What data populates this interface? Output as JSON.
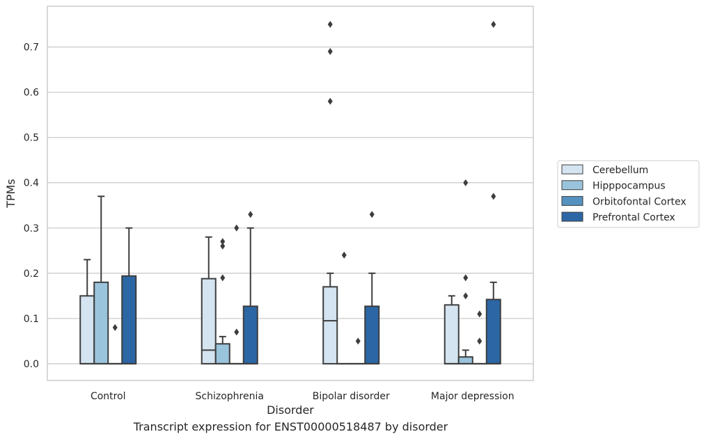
{
  "caption": "Transcript expression for ENST00000518487 by disorder",
  "chart_data": {
    "type": "box",
    "title": "",
    "xlabel": "Disorder",
    "ylabel": "TPMs",
    "ylim": [
      -0.037,
      0.79
    ],
    "yticks": [
      0.0,
      0.1,
      0.2,
      0.3,
      0.4,
      0.5,
      0.6,
      0.7
    ],
    "ytick_labels": [
      "0.0",
      "0.1",
      "0.2",
      "0.3",
      "0.4",
      "0.5",
      "0.6",
      "0.7"
    ],
    "grid": "horizontal",
    "legend_position": "right",
    "categories": [
      "Control",
      "Schizophrenia",
      "Bipolar disorder",
      "Major depression"
    ],
    "series": [
      {
        "name": "Cerebellum",
        "color": "#d4e4f1",
        "boxes": [
          {
            "q1": 0.0,
            "median": 0.0,
            "q3": 0.15,
            "whisker_low": 0.0,
            "whisker_high": 0.23,
            "outliers": []
          },
          {
            "q1": 0.0,
            "median": 0.03,
            "q3": 0.188,
            "whisker_low": 0.0,
            "whisker_high": 0.28,
            "outliers": []
          },
          {
            "q1": 0.0,
            "median": 0.095,
            "q3": 0.17,
            "whisker_low": 0.0,
            "whisker_high": 0.2,
            "outliers": [
              0.58,
              0.69,
              0.75
            ]
          },
          {
            "q1": 0.0,
            "median": 0.0,
            "q3": 0.13,
            "whisker_low": 0.0,
            "whisker_high": 0.15,
            "outliers": []
          }
        ]
      },
      {
        "name": "Hipppocampus",
        "color": "#9ac4dc",
        "boxes": [
          {
            "q1": 0.0,
            "median": 0.0,
            "q3": 0.18,
            "whisker_low": 0.0,
            "whisker_high": 0.37,
            "outliers": []
          },
          {
            "q1": 0.0,
            "median": 0.0,
            "q3": 0.044,
            "whisker_low": 0.0,
            "whisker_high": 0.06,
            "outliers": [
              0.19,
              0.26,
              0.27
            ]
          },
          {
            "q1": 0.0,
            "median": 0.0,
            "q3": 0.0,
            "whisker_low": 0.0,
            "whisker_high": 0.0,
            "outliers": [
              0.24
            ]
          },
          {
            "q1": 0.0,
            "median": 0.0,
            "q3": 0.015,
            "whisker_low": 0.0,
            "whisker_high": 0.03,
            "outliers": [
              0.15,
              0.19,
              0.4
            ]
          }
        ]
      },
      {
        "name": "Orbitofontal Cortex",
        "color": "#5592c0",
        "boxes": [
          {
            "q1": 0.0,
            "median": 0.0,
            "q3": 0.0,
            "whisker_low": 0.0,
            "whisker_high": 0.0,
            "outliers": [
              0.08
            ]
          },
          {
            "q1": 0.0,
            "median": 0.0,
            "q3": 0.0,
            "whisker_low": 0.0,
            "whisker_high": 0.0,
            "outliers": [
              0.07,
              0.3
            ]
          },
          {
            "q1": 0.0,
            "median": 0.0,
            "q3": 0.0,
            "whisker_low": 0.0,
            "whisker_high": 0.0,
            "outliers": [
              0.05
            ]
          },
          {
            "q1": 0.0,
            "median": 0.0,
            "q3": 0.0,
            "whisker_low": 0.0,
            "whisker_high": 0.0,
            "outliers": [
              0.05,
              0.11
            ]
          }
        ]
      },
      {
        "name": "Prefrontal Cortex",
        "color": "#2c66a5",
        "boxes": [
          {
            "q1": 0.0,
            "median": 0.0,
            "q3": 0.194,
            "whisker_low": 0.0,
            "whisker_high": 0.3,
            "outliers": []
          },
          {
            "q1": 0.0,
            "median": 0.0,
            "q3": 0.127,
            "whisker_low": 0.0,
            "whisker_high": 0.3,
            "outliers": [
              0.33
            ]
          },
          {
            "q1": 0.0,
            "median": 0.0,
            "q3": 0.127,
            "whisker_low": 0.0,
            "whisker_high": 0.2,
            "outliers": [
              0.33
            ]
          },
          {
            "q1": 0.0,
            "median": 0.0,
            "q3": 0.142,
            "whisker_low": 0.0,
            "whisker_high": 0.18,
            "outliers": [
              0.37,
              0.75
            ]
          }
        ]
      }
    ]
  }
}
